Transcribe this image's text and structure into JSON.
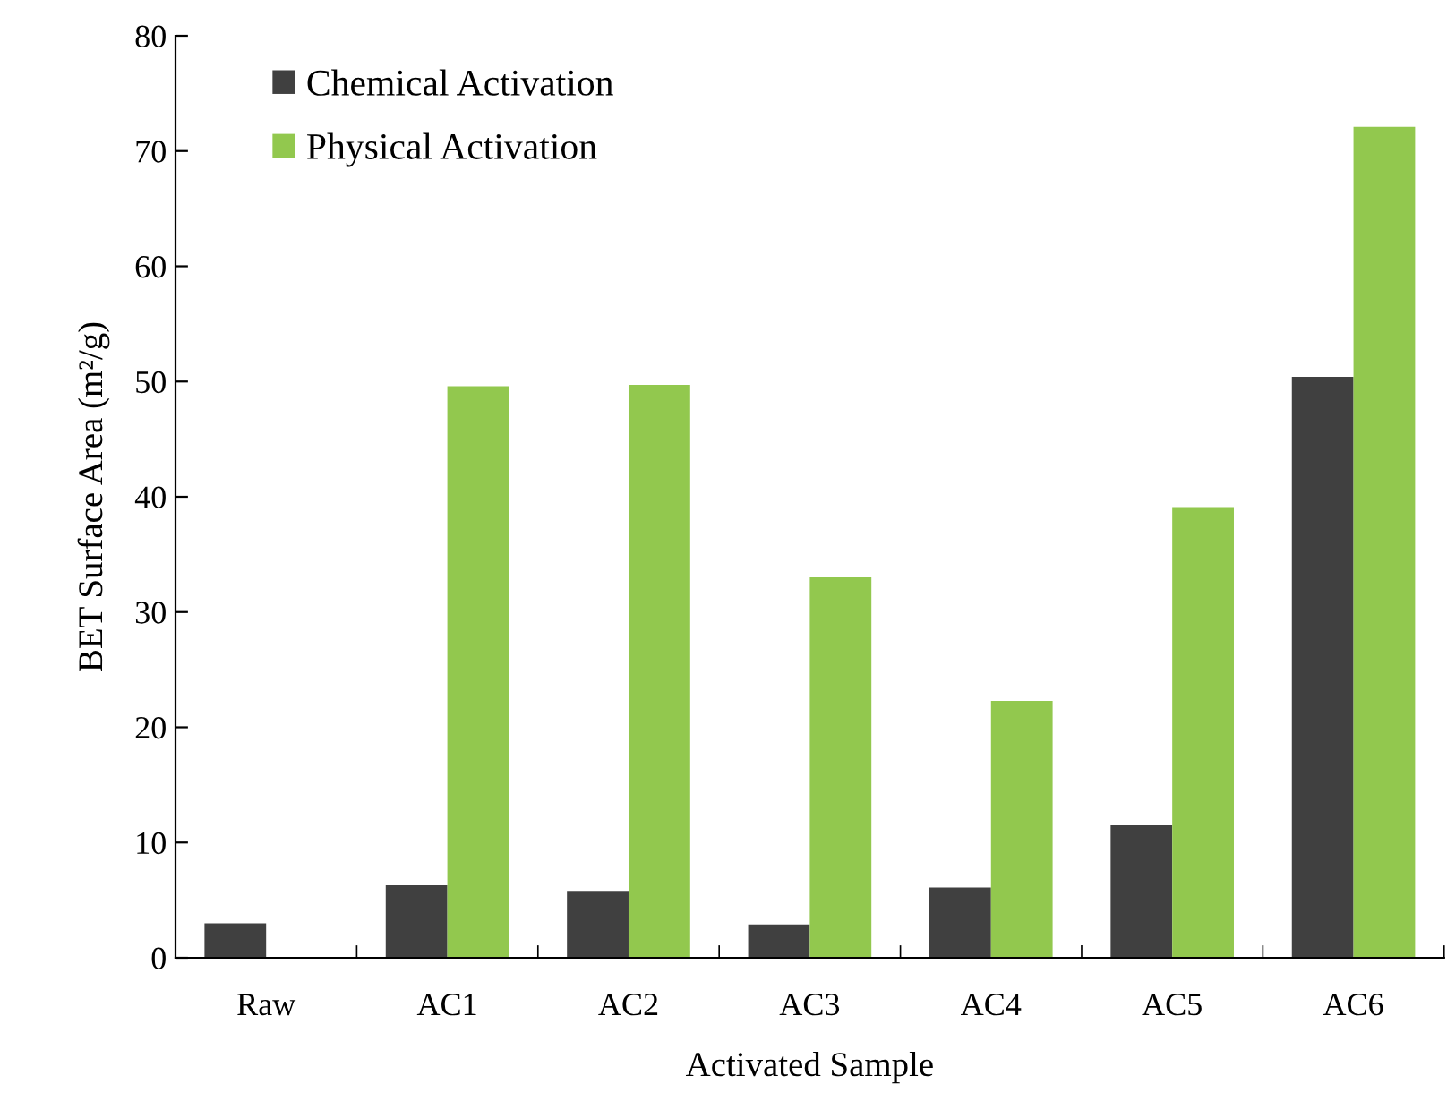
{
  "chart_data": {
    "type": "bar",
    "xlabel": "Activated Sample",
    "ylabel": "BET Surface Area (m²/g)",
    "categories": [
      "Raw",
      "AC1",
      "AC2",
      "AC3",
      "AC4",
      "AC5",
      "AC6"
    ],
    "series": [
      {
        "name": "Chemical Activation",
        "color": "#404040",
        "values": [
          3.0,
          6.3,
          5.8,
          2.9,
          6.1,
          11.5,
          50.4
        ]
      },
      {
        "name": "Physical Activation",
        "color": "#92c84e",
        "values": [
          null,
          49.6,
          49.7,
          33.0,
          22.3,
          39.1,
          72.1
        ]
      }
    ],
    "ylim": [
      0,
      80
    ],
    "yticks": [
      0,
      10,
      20,
      30,
      40,
      50,
      60,
      70,
      80
    ],
    "grid": false,
    "legend": "top left"
  }
}
